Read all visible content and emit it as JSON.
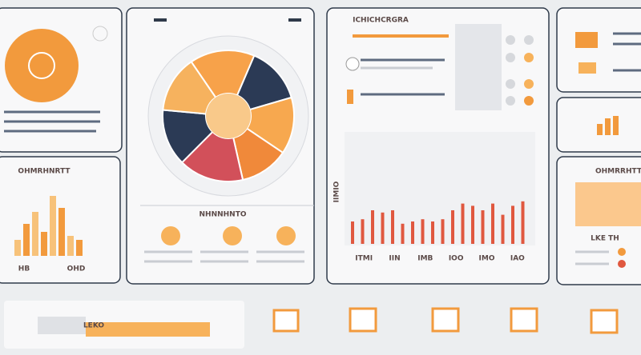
{
  "panels": {
    "summary": {
      "title": "OHMRHNRTT",
      "legend": [
        "HB",
        "OHD"
      ],
      "values": [
        20,
        40,
        55,
        30,
        75,
        60,
        25,
        20
      ],
      "ylim": [
        0,
        100
      ]
    },
    "donut": {
      "title": "NHNNHNTO",
      "values": [
        16,
        14,
        14,
        12,
        16,
        14,
        14
      ],
      "colors": [
        "#f7a24a",
        "#2b3a55",
        "#f7a84f",
        "#f0893a",
        "#d2505a",
        "#2b3a55",
        "#f6b25e"
      ]
    },
    "report": {
      "title": "ICHICHCRGRA",
      "axis_label": "IIMIO",
      "categories": [
        "ITMI",
        "IIN",
        "IMB",
        "IOO",
        "IMO",
        "IAO"
      ],
      "values": [
        20,
        22,
        30,
        28,
        30,
        18,
        20,
        22,
        20,
        22,
        30,
        36,
        34,
        30,
        36,
        26,
        34,
        38
      ],
      "ylim": [
        0,
        100
      ],
      "color": "#e0583f"
    },
    "side": {
      "title": "OHMRRHTT",
      "legend": "LKE TH"
    },
    "footer": {
      "label": "LEKO"
    }
  }
}
